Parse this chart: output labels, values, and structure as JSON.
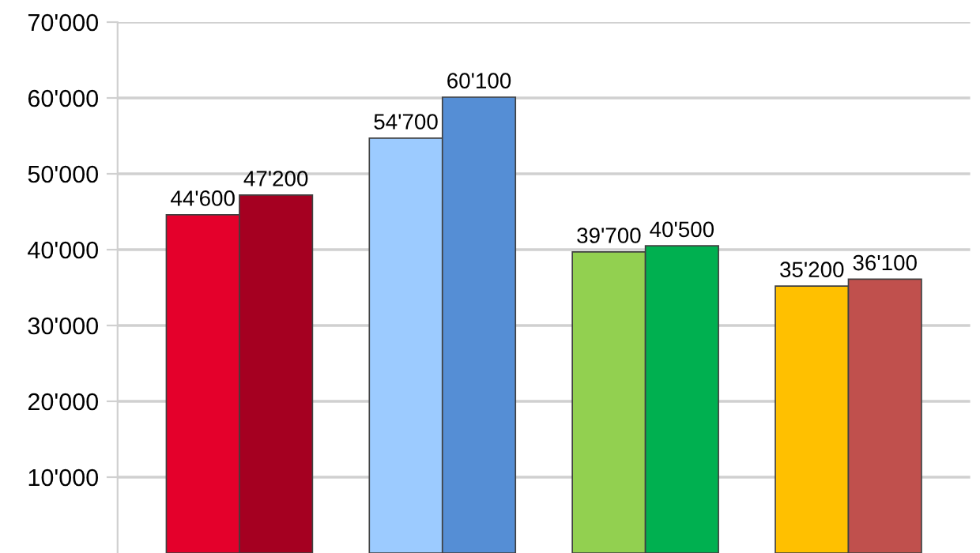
{
  "chart_data": {
    "type": "bar",
    "categories": [
      null,
      null,
      null,
      null
    ],
    "series": [
      {
        "colors": [
          "#e4002b",
          "#9ccbff",
          "#92d050",
          "#ffc000"
        ],
        "values": [
          44600,
          54700,
          39700,
          35200
        ],
        "value_labels": [
          "44'600",
          "54'700",
          "39'700",
          "35'200"
        ]
      },
      {
        "colors": [
          "#a50021",
          "#558ed5",
          "#00b050",
          "#c0504d"
        ],
        "values": [
          47200,
          60100,
          40500,
          36100
        ],
        "value_labels": [
          "47'200",
          "60'100",
          "40'500",
          "36'100"
        ]
      }
    ],
    "ylim": [
      0,
      70000
    ],
    "yticks": [
      {
        "value": 10000,
        "label": "10'000"
      },
      {
        "value": 20000,
        "label": "20'000"
      },
      {
        "value": 30000,
        "label": "30'000"
      },
      {
        "value": 40000,
        "label": "40'000"
      },
      {
        "value": 50000,
        "label": "50'000"
      },
      {
        "value": 60000,
        "label": "60'000"
      },
      {
        "value": 70000,
        "label": "70'000"
      }
    ],
    "grid": "y",
    "legend": false
  }
}
